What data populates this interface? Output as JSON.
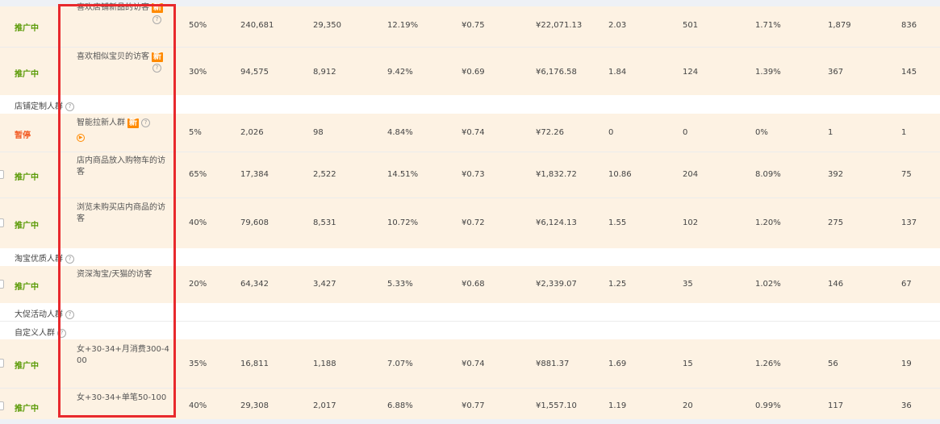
{
  "rows": [
    {
      "status": "推广中",
      "name": "喜欢店铺新品的访客",
      "badge": "新",
      "premium": "50%",
      "impressions": "240,681",
      "clicks": "29,350",
      "ctr": "12.19%",
      "cpc": "¥0.75",
      "cost": "¥22,071.13",
      "roi": "2.03",
      "orders": "501",
      "cvr": "1.71%",
      "favorites": "1,879",
      "carts": "836"
    },
    {
      "status": "推广中",
      "name": "喜欢相似宝贝的访客",
      "badge": "新",
      "premium": "30%",
      "impressions": "94,575",
      "clicks": "8,912",
      "ctr": "9.42%",
      "cpc": "¥0.69",
      "cost": "¥6,176.58",
      "roi": "1.84",
      "orders": "124",
      "cvr": "1.39%",
      "favorites": "367",
      "carts": "145"
    },
    {
      "status": "暂停",
      "name": "智能拉新人群",
      "badge": "新",
      "premium": "5%",
      "impressions": "2,026",
      "clicks": "98",
      "ctr": "4.84%",
      "cpc": "¥0.74",
      "cost": "¥72.26",
      "roi": "0",
      "orders": "0",
      "cvr": "0%",
      "favorites": "1",
      "carts": "1"
    },
    {
      "status": "推广中",
      "name": "店内商品放入购物车的访客",
      "premium": "65%",
      "impressions": "17,384",
      "clicks": "2,522",
      "ctr": "14.51%",
      "cpc": "¥0.73",
      "cost": "¥1,832.72",
      "roi": "10.86",
      "orders": "204",
      "cvr": "8.09%",
      "favorites": "392",
      "carts": "75"
    },
    {
      "status": "推广中",
      "name": "浏览未购买店内商品的访客",
      "premium": "40%",
      "impressions": "79,608",
      "clicks": "8,531",
      "ctr": "10.72%",
      "cpc": "¥0.72",
      "cost": "¥6,124.13",
      "roi": "1.55",
      "orders": "102",
      "cvr": "1.20%",
      "favorites": "275",
      "carts": "137"
    },
    {
      "status": "推广中",
      "name": "资深淘宝/天猫的访客",
      "premium": "20%",
      "impressions": "64,342",
      "clicks": "3,427",
      "ctr": "5.33%",
      "cpc": "¥0.68",
      "cost": "¥2,339.07",
      "roi": "1.25",
      "orders": "35",
      "cvr": "1.02%",
      "favorites": "146",
      "carts": "67"
    },
    {
      "status": "推广中",
      "name": "女+30-34+月消费300-400",
      "premium": "35%",
      "impressions": "16,811",
      "clicks": "1,188",
      "ctr": "7.07%",
      "cpc": "¥0.74",
      "cost": "¥881.37",
      "roi": "1.69",
      "orders": "15",
      "cvr": "1.26%",
      "favorites": "56",
      "carts": "19"
    },
    {
      "status": "推广中",
      "name": "女+30-34+单笔50-100",
      "premium": "40%",
      "impressions": "29,308",
      "clicks": "2,017",
      "ctr": "6.88%",
      "cpc": "¥0.77",
      "cost": "¥1,557.10",
      "roi": "1.19",
      "orders": "20",
      "cvr": "0.99%",
      "favorites": "117",
      "carts": "36"
    }
  ],
  "groups": [
    {
      "label": "店铺定制人群"
    },
    {
      "label": "淘宝优质人群"
    },
    {
      "label": "大促活动人群"
    },
    {
      "label": "自定义人群"
    }
  ],
  "icons": {
    "help": "?",
    "play": "▶"
  },
  "colors": {
    "active_status": "#5a9a06",
    "paused_status": "#f25a22",
    "row_background": "#fdf2e3",
    "badge": "#ff8a00",
    "highlight_border": "#e8292d"
  }
}
